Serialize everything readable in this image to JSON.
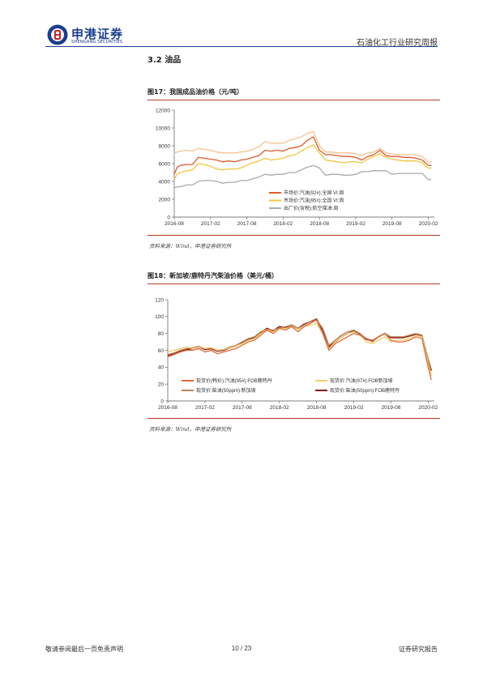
{
  "header": {
    "company_cn": "申港证券",
    "company_en": "SHENGANG SECURITIES",
    "report_title": "石油化工行业研究周报",
    "brand_color": "#1b3f8f"
  },
  "section": {
    "heading": "3.2 油品"
  },
  "figures": [
    {
      "title": "图17：我国成品油价格（元/吨）",
      "source": "资料来源：Wind，申港证券研究所"
    },
    {
      "title": "图18：新加坡/鹿特丹汽柴油价格（美元/桶）",
      "source": "资料来源：Wind，申港证券研究所"
    }
  ],
  "chart_data": [
    {
      "type": "line",
      "title": "",
      "xlabel": "",
      "ylabel": "",
      "x_ticks": [
        "2016-08",
        "2017-02",
        "2017-08",
        "2018-02",
        "2018-08",
        "2019-02",
        "2019-08",
        "2020-02"
      ],
      "x_range": [
        0,
        43
      ],
      "ylim": [
        0,
        12000
      ],
      "y_ticks": [
        0,
        2000,
        4000,
        6000,
        8000,
        10000,
        12000
      ],
      "legend_position": "lower-right",
      "series": [
        {
          "name": "市场价:汽油(92#):全国 VI:周",
          "color": "#e05a2b",
          "x": [
            0,
            0.5,
            1,
            2,
            3,
            4,
            5,
            6,
            7,
            8,
            9,
            10,
            11,
            12,
            13,
            14,
            15,
            16,
            17,
            18,
            19,
            20,
            21,
            22,
            23,
            24,
            25,
            26,
            27,
            28,
            29,
            30,
            31,
            32,
            33,
            34,
            35,
            36,
            37,
            38,
            39,
            40,
            41,
            42,
            42.5
          ],
          "values": [
            4800,
            5600,
            5800,
            5900,
            5900,
            6700,
            6600,
            6500,
            6400,
            6200,
            6300,
            6200,
            6400,
            6500,
            6700,
            6900,
            7500,
            7400,
            7500,
            7400,
            7700,
            7800,
            8000,
            8600,
            9000,
            7500,
            7000,
            7000,
            6900,
            6800,
            6800,
            6700,
            6400,
            6800,
            7000,
            7500,
            6900,
            6800,
            6800,
            6700,
            6700,
            6600,
            6400,
            5800,
            5800
          ]
        },
        {
          "name": "市场价:汽油(95#):全国 VI:周",
          "color": "#f2c53d",
          "x": [
            0,
            0.5,
            1,
            2,
            3,
            4,
            5,
            6,
            7,
            8,
            9,
            10,
            11,
            12,
            13,
            14,
            15,
            16,
            17,
            18,
            19,
            20,
            21,
            22,
            23,
            24,
            25,
            26,
            27,
            28,
            29,
            30,
            31,
            32,
            33,
            34,
            35,
            36,
            37,
            38,
            39,
            40,
            41,
            42,
            42.5
          ],
          "values": [
            4300,
            4800,
            5000,
            5200,
            5300,
            6000,
            5900,
            5700,
            5400,
            5300,
            5400,
            5400,
            5500,
            5800,
            6100,
            6300,
            6600,
            6400,
            6500,
            6600,
            6900,
            7000,
            7400,
            7800,
            8100,
            7200,
            6400,
            6300,
            6200,
            6100,
            6200,
            6200,
            6100,
            6500,
            6800,
            7100,
            6700,
            6500,
            6400,
            6300,
            6300,
            6300,
            6100,
            5500,
            5500
          ]
        },
        {
          "name": "市场价:柴油(92#):全国 VI:周",
          "color": "#f6c28f",
          "x": [
            0,
            0.5,
            1,
            2,
            3,
            4,
            5,
            6,
            7,
            8,
            9,
            10,
            11,
            12,
            13,
            14,
            15,
            16,
            17,
            18,
            19,
            20,
            21,
            22,
            23,
            24,
            25,
            26,
            27,
            28,
            29,
            30,
            31,
            32,
            33,
            34,
            35,
            36,
            37,
            38,
            39,
            40,
            41,
            42,
            42.5
          ],
          "values": [
            7200,
            7300,
            7400,
            7500,
            7400,
            7700,
            7600,
            7500,
            7300,
            7200,
            7200,
            7200,
            7300,
            7400,
            7600,
            7900,
            8500,
            8300,
            8300,
            8300,
            8600,
            8800,
            9000,
            9400,
            9600,
            8000,
            7300,
            7300,
            7200,
            7200,
            7200,
            7100,
            6900,
            7200,
            7300,
            7700,
            7200,
            7100,
            7000,
            7000,
            7000,
            7000,
            6800,
            6200,
            6200
          ]
        },
        {
          "name": "出厂价(含税):航空煤油:周",
          "color": "#aaaaaa",
          "x": [
            0,
            0.5,
            1,
            2,
            3,
            4,
            5,
            6,
            7,
            8,
            9,
            10,
            11,
            12,
            13,
            14,
            15,
            16,
            17,
            18,
            19,
            20,
            21,
            22,
            23,
            24,
            25,
            26,
            27,
            28,
            29,
            30,
            31,
            32,
            33,
            34,
            35,
            36,
            37,
            38,
            39,
            40,
            41,
            42,
            42.5
          ],
          "values": [
            3300,
            3400,
            3400,
            3600,
            3600,
            4000,
            4100,
            4100,
            4000,
            3800,
            3900,
            3900,
            4100,
            4100,
            4300,
            4500,
            4800,
            4700,
            4800,
            4800,
            5000,
            5000,
            5300,
            5600,
            5800,
            5500,
            4700,
            4800,
            4800,
            4700,
            4700,
            4800,
            5100,
            5100,
            5200,
            5200,
            5200,
            4800,
            4900,
            4900,
            4900,
            4900,
            4900,
            4200,
            4200
          ]
        }
      ]
    },
    {
      "type": "line",
      "title": "",
      "xlabel": "",
      "ylabel": "",
      "x_ticks": [
        "2016-08",
        "2017-02",
        "2017-08",
        "2018-02",
        "2018-08",
        "2019-02",
        "2019-08",
        "2020-02"
      ],
      "x_range": [
        0,
        43
      ],
      "ylim": [
        0,
        120
      ],
      "y_ticks": [
        0,
        20,
        40,
        60,
        80,
        100,
        120
      ],
      "legend_position": "bottom",
      "series": [
        {
          "name": "现货价(韩价):汽油(95#):FOB鹿特丹",
          "color": "#e26a3c",
          "x": [
            0,
            1,
            2,
            3,
            4,
            5,
            6,
            7,
            8,
            9,
            10,
            11,
            12,
            13,
            14,
            15,
            16,
            17,
            18,
            19,
            20,
            21,
            22,
            23,
            24,
            25,
            26,
            27,
            28,
            29,
            30,
            31,
            32,
            33,
            34,
            35,
            36,
            37,
            38,
            39,
            40,
            41,
            42,
            42.5
          ],
          "values": [
            52,
            55,
            58,
            60,
            60,
            62,
            58,
            60,
            56,
            58,
            60,
            62,
            66,
            70,
            72,
            78,
            84,
            80,
            86,
            84,
            88,
            82,
            88,
            92,
            96,
            80,
            60,
            68,
            72,
            76,
            80,
            78,
            74,
            70,
            76,
            80,
            72,
            70,
            70,
            72,
            76,
            74,
            40,
            25
          ]
        },
        {
          "name": "现货价:汽油(97#):FOB新加坡",
          "color": "#f0cf6a",
          "x": [
            0,
            1,
            2,
            3,
            4,
            5,
            6,
            7,
            8,
            9,
            10,
            11,
            12,
            13,
            14,
            15,
            16,
            17,
            18,
            19,
            20,
            21,
            22,
            23,
            24,
            25,
            26,
            27,
            28,
            29,
            30,
            31,
            32,
            33,
            34,
            35,
            36,
            37,
            38,
            39,
            40,
            41,
            42,
            42.5
          ],
          "values": [
            58,
            60,
            62,
            64,
            62,
            64,
            62,
            63,
            60,
            61,
            63,
            65,
            68,
            72,
            74,
            80,
            84,
            82,
            86,
            86,
            88,
            85,
            88,
            90,
            92,
            80,
            62,
            70,
            76,
            80,
            82,
            78,
            70,
            68,
            72,
            76,
            70,
            72,
            72,
            74,
            78,
            76,
            45,
            30
          ]
        },
        {
          "name": "现货价:柴油(50ppm):新加坡",
          "color": "#b8865e",
          "x": [
            0,
            1,
            2,
            3,
            4,
            5,
            6,
            7,
            8,
            9,
            10,
            11,
            12,
            13,
            14,
            15,
            16,
            17,
            18,
            19,
            20,
            21,
            22,
            23,
            24,
            25,
            26,
            27,
            28,
            29,
            30,
            31,
            32,
            33,
            34,
            35,
            36,
            37,
            38,
            39,
            40,
            41,
            42,
            42.5
          ],
          "values": [
            55,
            57,
            60,
            62,
            63,
            65,
            62,
            63,
            60,
            61,
            64,
            66,
            70,
            74,
            76,
            82,
            85,
            84,
            86,
            88,
            90,
            86,
            90,
            94,
            96,
            86,
            66,
            72,
            78,
            82,
            84,
            80,
            74,
            72,
            76,
            80,
            76,
            76,
            76,
            78,
            80,
            78,
            50,
            38
          ]
        },
        {
          "name": "现货价:柴油(50ppm):FOB鹿特丹",
          "color": "#8b1a10",
          "x": [
            0,
            1,
            2,
            3,
            4,
            5,
            6,
            7,
            8,
            9,
            10,
            11,
            12,
            13,
            14,
            15,
            16,
            17,
            18,
            19,
            20,
            21,
            22,
            23,
            24,
            25,
            26,
            27,
            28,
            29,
            30,
            31,
            32,
            33,
            34,
            35,
            36,
            37,
            38,
            39,
            40,
            41,
            42,
            42.5
          ],
          "values": [
            54,
            56,
            59,
            61,
            62,
            64,
            61,
            62,
            59,
            60,
            63,
            65,
            69,
            73,
            75,
            81,
            86,
            83,
            88,
            87,
            90,
            86,
            91,
            94,
            97,
            84,
            64,
            70,
            76,
            80,
            83,
            79,
            73,
            71,
            76,
            80,
            75,
            75,
            75,
            77,
            79,
            77,
            48,
            36
          ]
        }
      ]
    }
  ],
  "footer": {
    "disclaimer": "敬请参阅最后一页免责声明",
    "page": "10 / 23",
    "doc_type": "证券研究报告"
  }
}
